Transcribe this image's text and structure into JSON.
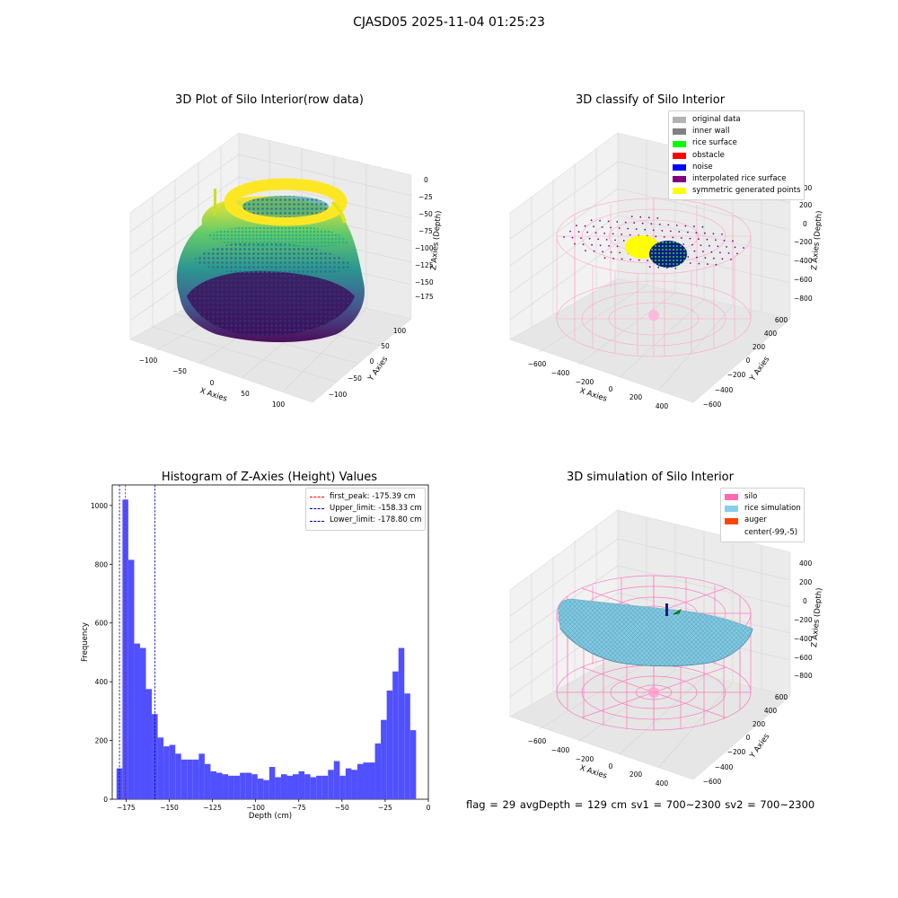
{
  "suptitle": "CJASD05 2025-11-04 01:25:23",
  "colors": {
    "histogram_bar": "#5050ff",
    "first_peak_line": "#ff0000",
    "limit_line": "#0000aa",
    "pane_fill": "#f2f2f2",
    "grid": "#dddddd"
  },
  "panels": {
    "raw": {
      "title": "3D Plot of Silo Interior(row data)",
      "xlabel": "X Axies",
      "ylabel": "Y Axies",
      "zlabel": "Z Axies (Depth)",
      "x_ticks": [
        "−100",
        "−50",
        "0",
        "50",
        "100"
      ],
      "y_ticks": [
        "−100",
        "−50",
        "0",
        "50",
        "100"
      ],
      "z_ticks": [
        "0",
        "−25",
        "−50",
        "−75",
        "−100",
        "−125",
        "−150",
        "−175"
      ],
      "colormap": "viridis"
    },
    "classify": {
      "title": "3D classify of Silo Interior",
      "xlabel": "X Axies",
      "ylabel": "Y Axies",
      "zlabel": "Z Axies (Depth)",
      "x_ticks": [
        "−600",
        "−400",
        "−200",
        "0",
        "200",
        "400"
      ],
      "y_ticks": [
        "−600",
        "−400",
        "−200",
        "0",
        "200",
        "400",
        "600"
      ],
      "z_ticks": [
        "400",
        "200",
        "0",
        "−200",
        "−400",
        "−600",
        "−800"
      ],
      "legend": [
        {
          "label": "original data",
          "color": "#b3b3b3"
        },
        {
          "label": "inner wall",
          "color": "#808080"
        },
        {
          "label": "rice surface",
          "color": "#00ff00"
        },
        {
          "label": "obstacle",
          "color": "#ff0000"
        },
        {
          "label": "noise",
          "color": "#0000ff"
        },
        {
          "label": "interpolated rice surface",
          "color": "#800080"
        },
        {
          "label": "symmetric generated points",
          "color": "#ffff00"
        }
      ]
    },
    "simulation": {
      "title": "3D simulation of Silo Interior",
      "xlabel": "X Axies",
      "ylabel": "Y Axies",
      "zlabel": "Z Axies (Depth)",
      "x_ticks": [
        "−600",
        "−400",
        "−200",
        "0",
        "200",
        "400"
      ],
      "y_ticks": [
        "−600",
        "−400",
        "−200",
        "0",
        "200",
        "400",
        "600"
      ],
      "z_ticks": [
        "400",
        "200",
        "0",
        "−200",
        "−400",
        "−600",
        "−800"
      ],
      "legend": [
        {
          "label": "silo",
          "color": "#ff69b4"
        },
        {
          "label": "rice simulation",
          "color": "#87ceeb"
        },
        {
          "label": "auger",
          "color": "#ff4500"
        },
        {
          "label": "center(-99,-5)",
          "color": ""
        }
      ]
    }
  },
  "footer": "flag = 29  avgDepth = 129 cm  sv1 = 700~2300  sv2 = 700~2300",
  "chart_data": {
    "type": "bar",
    "title": "Histogram of Z-Axies (Height) Values",
    "xlabel": "Depth (cm)",
    "ylabel": "Frequency",
    "xlim": [
      -183,
      0
    ],
    "ylim": [
      0,
      1070
    ],
    "x_ticks": [
      -175,
      -150,
      -125,
      -100,
      -75,
      -50,
      -25,
      0
    ],
    "x_tick_labels": [
      "−175",
      "−150",
      "−125",
      "−100",
      "−75",
      "−50",
      "−25",
      "0"
    ],
    "y_ticks": [
      0,
      200,
      400,
      600,
      800,
      1000
    ],
    "y_tick_labels": [
      "0",
      "200",
      "400",
      "600",
      "800",
      "1000"
    ],
    "bin_start": -180.5,
    "bin_width": 3.4,
    "values": [
      105,
      1020,
      815,
      530,
      515,
      375,
      290,
      210,
      180,
      185,
      155,
      135,
      135,
      135,
      155,
      120,
      95,
      90,
      85,
      80,
      80,
      90,
      90,
      85,
      70,
      65,
      110,
      75,
      85,
      80,
      85,
      95,
      85,
      75,
      80,
      80,
      100,
      130,
      80,
      105,
      100,
      120,
      125,
      125,
      190,
      270,
      370,
      435,
      515,
      360,
      235
    ],
    "vlines": [
      {
        "label": "first_peak: -175.39 cm",
        "x": -175.39,
        "color": "#ff0000"
      },
      {
        "label": "Upper_limit: -158.33 cm",
        "x": -158.33,
        "color": "#0000aa"
      },
      {
        "label": "Lower_limit: -178.80 cm",
        "x": -178.8,
        "color": "#0000aa"
      }
    ],
    "legend_position": "upper right"
  }
}
